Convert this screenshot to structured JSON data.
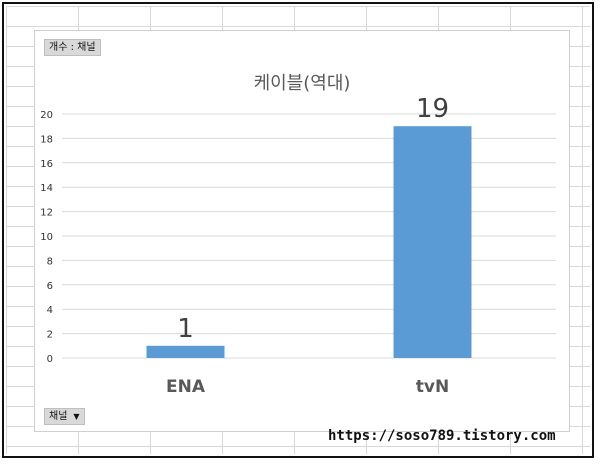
{
  "pivot": {
    "value_field_label": "개수 : 채널",
    "axis_field_label": "채널",
    "axis_field_icon": "dropdown-arrow-icon"
  },
  "watermark": "https://soso789.tistory.com",
  "chart_data": {
    "type": "bar",
    "title": "케이블(역대)",
    "categories": [
      "ENA",
      "tvN"
    ],
    "values": [
      1,
      19
    ],
    "data_labels": [
      "1",
      "19"
    ],
    "ylim": [
      0,
      20
    ],
    "y_ticks": [
      "0",
      "2",
      "4",
      "6",
      "8",
      "10",
      "12",
      "14",
      "16",
      "18",
      "20"
    ],
    "xlabel": "",
    "ylabel": "",
    "grid": true,
    "legend": "none",
    "bar_color": "#5b9bd5",
    "grid_color": "#d9d9d9",
    "text_color": "#595959"
  }
}
